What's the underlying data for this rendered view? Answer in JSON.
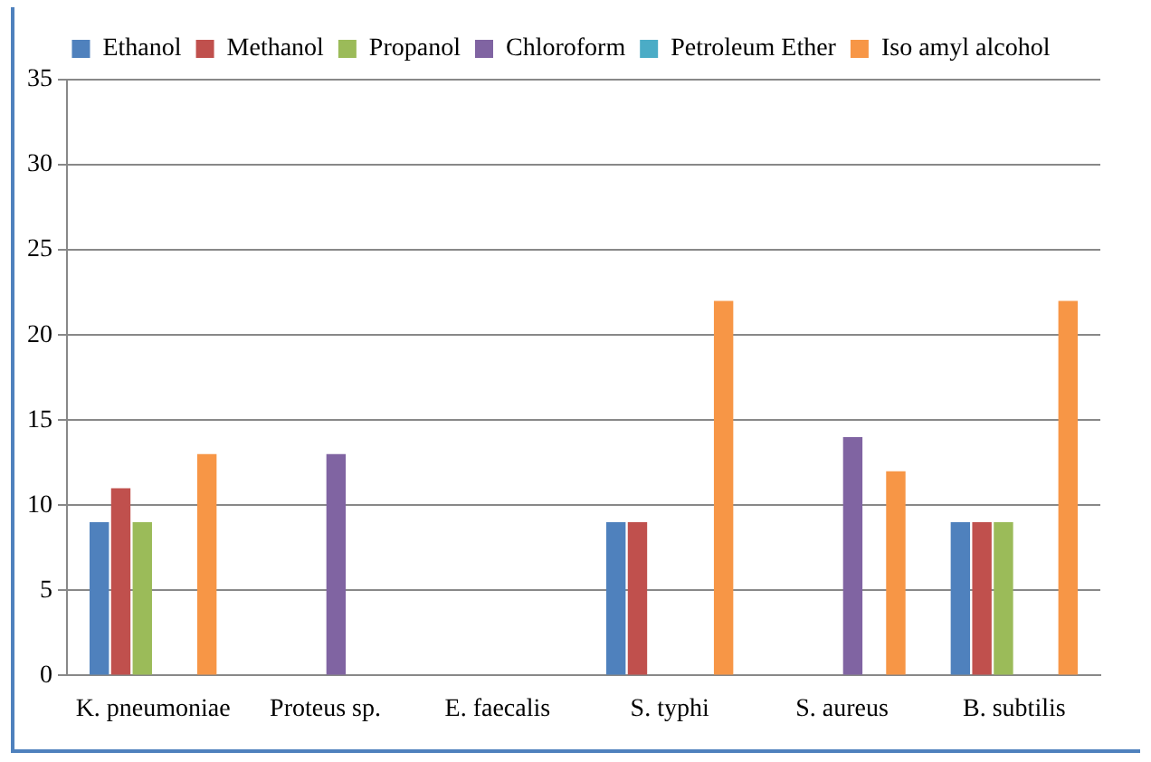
{
  "chart_data": {
    "type": "bar",
    "categories": [
      "K. pneumoniae",
      "Proteus sp.",
      "E. faecalis",
      "S. typhi",
      "S. aureus",
      "B. subtilis"
    ],
    "series": [
      {
        "name": "Ethanol",
        "color": "#4f81bd",
        "values": [
          9,
          null,
          null,
          9,
          null,
          9
        ]
      },
      {
        "name": "Methanol",
        "color": "#c0504d",
        "values": [
          11,
          null,
          null,
          9,
          null,
          9
        ]
      },
      {
        "name": "Propanol",
        "color": "#9bbb59",
        "values": [
          9,
          null,
          null,
          null,
          null,
          9
        ]
      },
      {
        "name": "Chloroform",
        "color": "#8064a2",
        "values": [
          null,
          13,
          null,
          null,
          14,
          null
        ]
      },
      {
        "name": "Petroleum Ether",
        "color": "#4bacc6",
        "values": [
          null,
          null,
          null,
          null,
          null,
          null
        ]
      },
      {
        "name": "Iso amyl alcohol",
        "color": "#f79646",
        "values": [
          13,
          null,
          null,
          22,
          12,
          22
        ]
      }
    ],
    "ylim": [
      0,
      35
    ],
    "yticks": [
      0,
      5,
      10,
      15,
      20,
      25,
      30,
      35
    ],
    "grid": "y",
    "legend": "top"
  }
}
